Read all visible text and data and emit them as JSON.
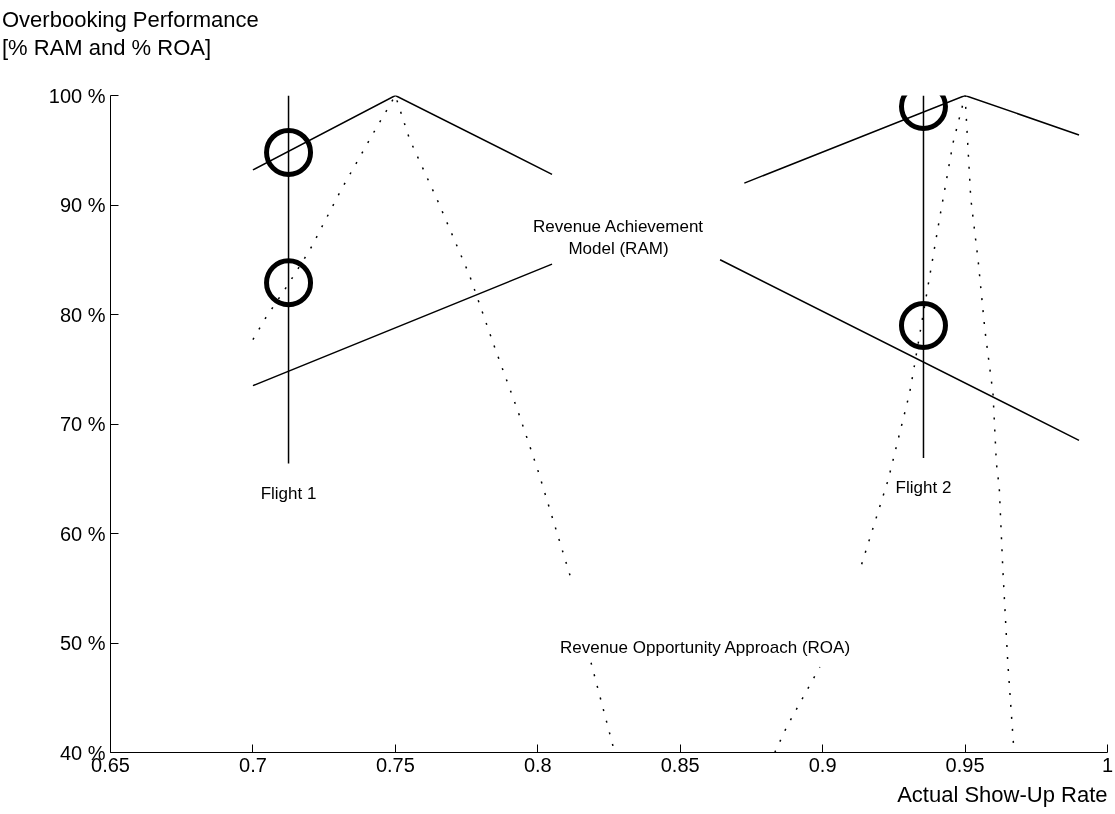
{
  "chart_data": {
    "type": "line",
    "ylabel": "Overbooking Performance\n[% RAM and % ROA]",
    "xlabel": "Actual Show-Up Rate",
    "xlim": [
      0.65,
      1
    ],
    "xticks": [
      0.65,
      0.7,
      0.75,
      0.8,
      0.85,
      0.9,
      0.95,
      1
    ],
    "ylim": [
      40,
      100
    ],
    "yticks": [
      {
        "value": 40,
        "label": "40 %"
      },
      {
        "value": 50,
        "label": "50 %"
      },
      {
        "value": 60,
        "label": "60 %"
      },
      {
        "value": 70,
        "label": "70 %"
      },
      {
        "value": 80,
        "label": "80 %"
      },
      {
        "value": 90,
        "label": "90 %"
      },
      {
        "value": 100,
        "label": "100 %"
      }
    ],
    "grid": false,
    "legend": false,
    "series": [
      {
        "color": "#000000",
        "line_style": "solid",
        "x": [
          0.7,
          0.75,
          0.805,
          0.835,
          0.864,
          0.99
        ],
        "values": [
          93.2,
          100,
          92.8,
          null,
          85.0,
          68.5
        ]
      },
      {
        "color": "#000000",
        "line_style": "solid",
        "x": [
          0.7,
          0.805,
          0.835,
          0.8725,
          0.95,
          0.99
        ],
        "values": [
          73.5,
          84.6,
          null,
          92.0,
          100,
          96.4
        ]
      },
      {
        "color": "#000000",
        "line_style": "dotted",
        "x": [
          0.7,
          0.704,
          0.712,
          0.72,
          0.731,
          0.743,
          0.75,
          0.755,
          0.765,
          0.776,
          0.785,
          0.793,
          0.8,
          0.8114,
          0.815,
          0.8187,
          0.827
        ],
        "values": [
          77.7,
          79.5,
          82.6,
          85.9,
          91.4,
          96.9,
          100,
          96.0,
          90.3,
          83.6,
          76.9,
          71.2,
          65.8,
          56.1,
          null,
          48.2,
          40
        ]
      },
      {
        "color": "#000000",
        "line_style": "dotted",
        "x": [
          0.8832,
          0.8875,
          0.899,
          0.905,
          0.9137,
          0.923,
          0.9305,
          0.932,
          0.936,
          0.941,
          0.9458,
          0.95,
          0.952,
          0.9546,
          0.957,
          0.9598,
          0.961,
          0.962,
          0.9633,
          0.965,
          0.9672
        ],
        "values": [
          40,
          42.4,
          47.8,
          null,
          57.2,
          64.9,
          72.8,
          75,
          81.1,
          88.7,
          95.7,
          100,
          90.6,
          84.9,
          78.5,
          72.8,
          66.4,
          64.2,
          56.5,
          48.2,
          40
        ]
      },
      {
        "name": "Flight 1",
        "color": "#000000",
        "line_style": "solid",
        "x": [
          0.7125,
          0.7125
        ],
        "values": [
          100,
          66.4
        ]
      },
      {
        "name": "Flight 2",
        "color": "#000000",
        "line_style": "solid",
        "x": [
          0.9354,
          0.9354
        ],
        "values": [
          100,
          66.9
        ]
      },
      {
        "type": "scatter",
        "color": "#000000",
        "marker": "circle",
        "x": [
          0.7125,
          0.7125,
          0.9354,
          0.9354
        ],
        "values": [
          94.8,
          82.9,
          99.0,
          79.0
        ]
      }
    ],
    "annotations": [
      "Revenue Achievement\nModel (RAM)",
      "Revenue Opportunity Approach (ROA)"
    ]
  }
}
